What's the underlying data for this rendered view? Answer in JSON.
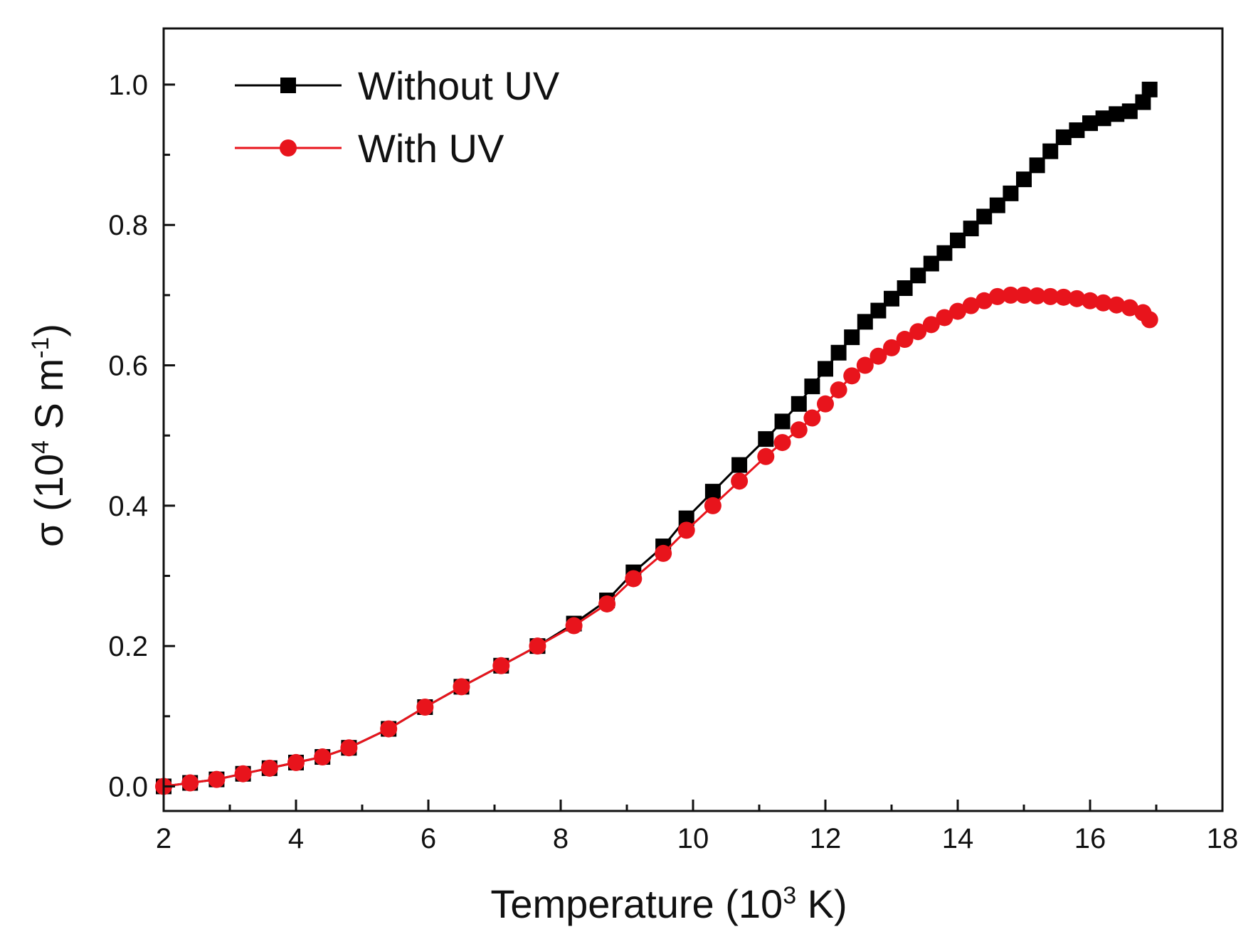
{
  "chart_data": {
    "type": "line",
    "title": "",
    "xlabel": {
      "prefix": "Temperature (10",
      "sup": "3",
      "suffix": " K)"
    },
    "ylabel": {
      "prefix": "σ (10",
      "sup": "4",
      "mid": " S m",
      "sup2": "-1",
      "suffix": ")"
    },
    "xlim": [
      2,
      18
    ],
    "ylim": [
      -0.035,
      1.08
    ],
    "xticks": [
      2,
      4,
      6,
      8,
      10,
      12,
      14,
      16,
      18
    ],
    "xtick_labels": [
      "2",
      "4",
      "6",
      "8",
      "10",
      "12",
      "14",
      "16",
      "18"
    ],
    "yticks": [
      0.0,
      0.2,
      0.4,
      0.6,
      0.8,
      1.0
    ],
    "ytick_labels": [
      "0.0",
      "0.2",
      "0.4",
      "0.6",
      "0.8",
      "1.0"
    ],
    "legend_position": "top-left",
    "series": [
      {
        "name": "Without UV",
        "color": "#000000",
        "marker": "square",
        "x": [
          2.0,
          2.4,
          2.8,
          3.2,
          3.6,
          4.0,
          4.4,
          4.8,
          5.4,
          5.95,
          6.5,
          7.1,
          7.65,
          8.2,
          8.7,
          9.1,
          9.55,
          9.9,
          10.3,
          10.7,
          11.1,
          11.35,
          11.6,
          11.8,
          12.0,
          12.2,
          12.4,
          12.6,
          12.8,
          13.0,
          13.2,
          13.4,
          13.6,
          13.8,
          14.0,
          14.2,
          14.4,
          14.6,
          14.8,
          15.0,
          15.2,
          15.4,
          15.6,
          15.8,
          16.0,
          16.2,
          16.4,
          16.6,
          16.8,
          16.9
        ],
        "y": [
          0.0,
          0.005,
          0.01,
          0.018,
          0.026,
          0.034,
          0.042,
          0.055,
          0.082,
          0.113,
          0.142,
          0.172,
          0.2,
          0.232,
          0.265,
          0.305,
          0.342,
          0.382,
          0.42,
          0.458,
          0.495,
          0.52,
          0.545,
          0.57,
          0.595,
          0.618,
          0.64,
          0.662,
          0.678,
          0.695,
          0.71,
          0.728,
          0.745,
          0.76,
          0.778,
          0.795,
          0.812,
          0.828,
          0.845,
          0.865,
          0.885,
          0.905,
          0.925,
          0.935,
          0.945,
          0.952,
          0.958,
          0.962,
          0.975,
          0.993
        ]
      },
      {
        "name": "With UV",
        "color": "#e8141c",
        "marker": "circle",
        "x": [
          2.0,
          2.4,
          2.8,
          3.2,
          3.6,
          4.0,
          4.4,
          4.8,
          5.4,
          5.95,
          6.5,
          7.1,
          7.65,
          8.2,
          8.7,
          9.1,
          9.55,
          9.9,
          10.3,
          10.7,
          11.1,
          11.35,
          11.6,
          11.8,
          12.0,
          12.2,
          12.4,
          12.6,
          12.8,
          13.0,
          13.2,
          13.4,
          13.6,
          13.8,
          14.0,
          14.2,
          14.4,
          14.6,
          14.8,
          15.0,
          15.2,
          15.4,
          15.6,
          15.8,
          16.0,
          16.2,
          16.4,
          16.6,
          16.8,
          16.9
        ],
        "y": [
          0.0,
          0.005,
          0.01,
          0.018,
          0.026,
          0.034,
          0.042,
          0.055,
          0.082,
          0.113,
          0.142,
          0.172,
          0.2,
          0.229,
          0.26,
          0.296,
          0.332,
          0.365,
          0.4,
          0.435,
          0.47,
          0.49,
          0.508,
          0.525,
          0.545,
          0.565,
          0.585,
          0.6,
          0.613,
          0.625,
          0.637,
          0.648,
          0.658,
          0.668,
          0.677,
          0.685,
          0.692,
          0.698,
          0.7,
          0.7,
          0.699,
          0.698,
          0.697,
          0.695,
          0.692,
          0.689,
          0.686,
          0.682,
          0.675,
          0.665
        ]
      }
    ]
  }
}
